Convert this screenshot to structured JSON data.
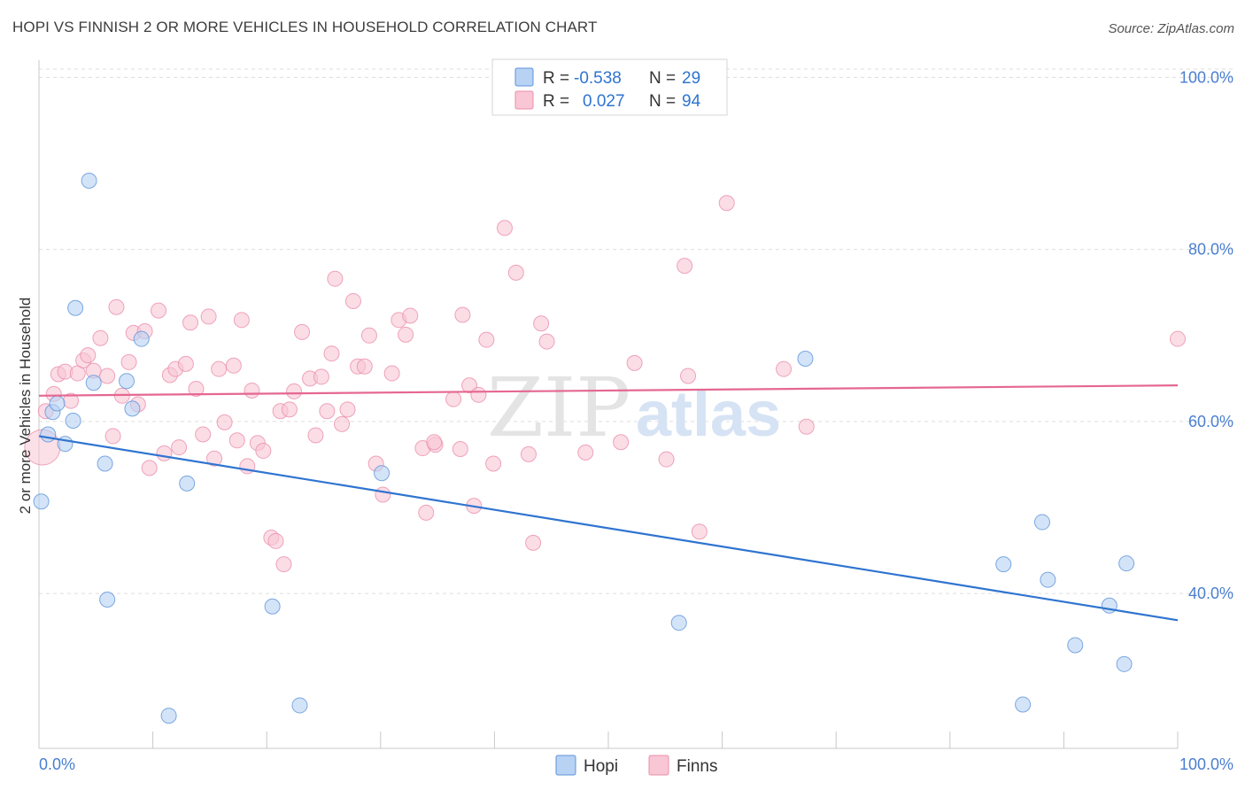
{
  "header": {
    "title": "HOPI VS FINNISH 2 OR MORE VEHICLES IN HOUSEHOLD CORRELATION CHART",
    "source": "Source: ZipAtlas.com"
  },
  "watermark": {
    "zip": "ZIP",
    "atlas": "atlas"
  },
  "colors": {
    "hopi_fill": "#b8d2f4",
    "hopi_stroke": "#5e93da",
    "hopi_line": "#2f74d0",
    "finns_fill": "#f9c6d5",
    "finns_stroke": "#eb8fac",
    "finns_line": "#e56791",
    "tick_text": "#4a7fd0",
    "grid": "#dddddd"
  },
  "legend_top": {
    "rows": [
      {
        "series": "Hopi",
        "r_label": "R =",
        "r_value": "-0.538",
        "n_label": "N =",
        "n_value": "29"
      },
      {
        "series": "Finns",
        "r_label": "R =",
        "r_value": "0.027",
        "n_label": "N =",
        "n_value": "94"
      }
    ]
  },
  "legend_bottom": {
    "items": [
      "Hopi",
      "Finns"
    ]
  },
  "chart_data": {
    "type": "scatter",
    "title": "HOPI VS FINNISH 2 OR MORE VEHICLES IN HOUSEHOLD CORRELATION CHART",
    "xlabel": "",
    "ylabel": "2 or more Vehicles in Household",
    "xlim": [
      0,
      100
    ],
    "ylim": [
      22,
      102
    ],
    "x_tick_labels": [
      "0.0%",
      "100.0%"
    ],
    "y_ticks": [
      40,
      60,
      80,
      100
    ],
    "y_tick_labels": [
      "40.0%",
      "60.0%",
      "80.0%",
      "100.0%"
    ],
    "grid": true,
    "series": [
      {
        "name": "Hopi",
        "R": -0.538,
        "N": 29,
        "trend": {
          "x": [
            0,
            100
          ],
          "y": [
            58.3,
            36.9
          ]
        },
        "points": [
          [
            0.2,
            50.7
          ],
          [
            0.8,
            58.5
          ],
          [
            1.2,
            61.1
          ],
          [
            1.6,
            62.1
          ],
          [
            2.3,
            57.4
          ],
          [
            3.0,
            60.1
          ],
          [
            3.2,
            73.2
          ],
          [
            4.4,
            88.0
          ],
          [
            4.8,
            64.5
          ],
          [
            5.8,
            55.1
          ],
          [
            6.0,
            39.3
          ],
          [
            7.7,
            64.7
          ],
          [
            8.2,
            61.5
          ],
          [
            9.0,
            69.6
          ],
          [
            11.4,
            25.8
          ],
          [
            13.0,
            52.8
          ],
          [
            20.5,
            38.5
          ],
          [
            22.9,
            27.0
          ],
          [
            30.1,
            54.0
          ],
          [
            56.2,
            36.6
          ],
          [
            67.3,
            67.3
          ],
          [
            84.7,
            43.4
          ],
          [
            86.4,
            27.1
          ],
          [
            88.1,
            48.3
          ],
          [
            88.6,
            41.6
          ],
          [
            91.0,
            34.0
          ],
          [
            94.0,
            38.6
          ],
          [
            95.3,
            31.8
          ],
          [
            95.5,
            43.5
          ]
        ]
      },
      {
        "name": "Finns",
        "R": 0.027,
        "N": 94,
        "trend": {
          "x": [
            0,
            100
          ],
          "y": [
            63.0,
            64.2
          ]
        },
        "points": [
          [
            0.3,
            57.0
          ],
          [
            0.6,
            61.2
          ],
          [
            1.3,
            63.2
          ],
          [
            1.7,
            65.5
          ],
          [
            2.3,
            65.8
          ],
          [
            2.8,
            62.4
          ],
          [
            3.4,
            65.6
          ],
          [
            3.9,
            67.1
          ],
          [
            4.3,
            67.7
          ],
          [
            4.8,
            65.9
          ],
          [
            5.4,
            69.7
          ],
          [
            6.0,
            65.3
          ],
          [
            6.5,
            58.3
          ],
          [
            6.8,
            73.3
          ],
          [
            7.3,
            63.0
          ],
          [
            7.9,
            66.9
          ],
          [
            8.3,
            70.3
          ],
          [
            8.7,
            62.0
          ],
          [
            9.3,
            70.5
          ],
          [
            9.7,
            54.6
          ],
          [
            10.5,
            72.9
          ],
          [
            11.0,
            56.3
          ],
          [
            11.5,
            65.4
          ],
          [
            12.0,
            66.1
          ],
          [
            12.3,
            57.0
          ],
          [
            12.9,
            66.7
          ],
          [
            13.3,
            71.5
          ],
          [
            13.8,
            63.8
          ],
          [
            14.4,
            58.5
          ],
          [
            14.9,
            72.2
          ],
          [
            15.4,
            55.7
          ],
          [
            15.8,
            66.1
          ],
          [
            16.3,
            59.9
          ],
          [
            17.1,
            66.5
          ],
          [
            17.4,
            57.8
          ],
          [
            17.8,
            71.8
          ],
          [
            18.3,
            54.8
          ],
          [
            18.7,
            63.6
          ],
          [
            19.2,
            57.5
          ],
          [
            19.7,
            56.6
          ],
          [
            20.4,
            46.5
          ],
          [
            20.8,
            46.1
          ],
          [
            21.5,
            43.4
          ],
          [
            21.2,
            61.2
          ],
          [
            22.0,
            61.4
          ],
          [
            22.4,
            63.5
          ],
          [
            23.1,
            70.4
          ],
          [
            23.8,
            65.0
          ],
          [
            24.3,
            58.4
          ],
          [
            24.8,
            65.2
          ],
          [
            25.3,
            61.2
          ],
          [
            25.7,
            67.9
          ],
          [
            26.0,
            76.6
          ],
          [
            26.6,
            59.7
          ],
          [
            27.1,
            61.4
          ],
          [
            27.6,
            74.0
          ],
          [
            28.0,
            66.4
          ],
          [
            28.6,
            66.4
          ],
          [
            29.0,
            70.0
          ],
          [
            29.6,
            55.1
          ],
          [
            30.2,
            51.5
          ],
          [
            31.0,
            65.6
          ],
          [
            31.6,
            71.8
          ],
          [
            32.2,
            70.1
          ],
          [
            32.6,
            72.3
          ],
          [
            33.7,
            56.9
          ],
          [
            34.0,
            49.4
          ],
          [
            34.8,
            57.3
          ],
          [
            34.7,
            57.6
          ],
          [
            36.4,
            62.6
          ],
          [
            37.0,
            56.8
          ],
          [
            37.2,
            72.4
          ],
          [
            37.8,
            64.2
          ],
          [
            38.2,
            50.2
          ],
          [
            38.6,
            63.1
          ],
          [
            39.3,
            69.5
          ],
          [
            39.9,
            55.1
          ],
          [
            40.9,
            82.5
          ],
          [
            41.9,
            77.3
          ],
          [
            43.0,
            56.2
          ],
          [
            43.4,
            45.9
          ],
          [
            44.1,
            71.4
          ],
          [
            44.6,
            69.3
          ],
          [
            48.0,
            56.4
          ],
          [
            51.1,
            57.6
          ],
          [
            52.3,
            66.8
          ],
          [
            55.1,
            55.6
          ],
          [
            56.7,
            78.1
          ],
          [
            57.0,
            65.3
          ],
          [
            58.0,
            47.2
          ],
          [
            60.4,
            85.4
          ],
          [
            65.4,
            66.1
          ],
          [
            67.4,
            59.4
          ],
          [
            100.0,
            69.6
          ]
        ]
      }
    ]
  }
}
